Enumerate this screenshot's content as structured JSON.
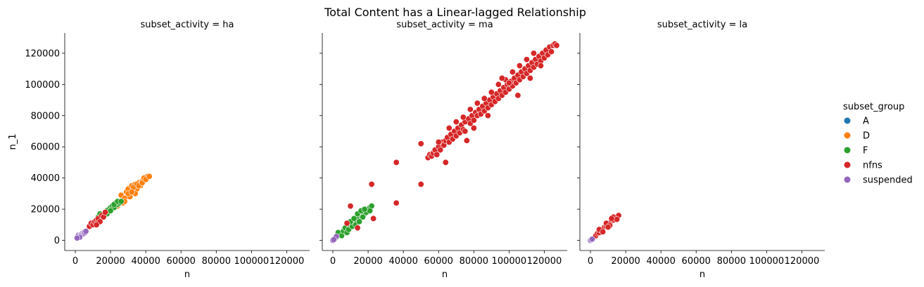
{
  "figure": {
    "title": "Total Content has a Linear-lagged Relationship"
  },
  "chart_data": [
    {
      "type": "scatter",
      "title": "subset_activity = ha",
      "xlabel": "n",
      "ylabel": "n_1",
      "xlim": [
        -6000,
        133000
      ],
      "ylim": [
        -6500,
        133000
      ],
      "xticks": [
        0,
        20000,
        40000,
        60000,
        80000,
        100000,
        120000
      ],
      "yticks": [
        0,
        20000,
        40000,
        60000,
        80000,
        100000,
        120000
      ],
      "series": [
        {
          "name": "D",
          "color": "#ff7f0e",
          "points": [
            [
              24000,
              22000
            ],
            [
              26000,
              29000
            ],
            [
              27000,
              24000
            ],
            [
              28000,
              27000
            ],
            [
              29000,
              31000
            ],
            [
              30000,
              33000
            ],
            [
              31000,
              28000
            ],
            [
              32000,
              35000
            ],
            [
              33000,
              32000
            ],
            [
              34000,
              36000
            ],
            [
              35000,
              33000
            ],
            [
              36000,
              37000
            ],
            [
              37000,
              35000
            ],
            [
              38000,
              38000
            ],
            [
              39000,
              39000
            ],
            [
              40000,
              40000
            ],
            [
              41000,
              41000
            ],
            [
              30000,
              30000
            ],
            [
              33000,
              34000
            ],
            [
              35000,
              36000
            ],
            [
              36000,
              35000
            ],
            [
              38000,
              37000
            ],
            [
              39000,
              40000
            ],
            [
              40000,
              39000
            ],
            [
              42000,
              41000
            ],
            [
              34000,
              30000
            ],
            [
              32000,
              31000
            ],
            [
              28000,
              25000
            ]
          ]
        },
        {
          "name": "F",
          "color": "#2ca02c",
          "points": [
            [
              12000,
              12000
            ],
            [
              13000,
              15000
            ],
            [
              14000,
              14000
            ],
            [
              15000,
              16000
            ],
            [
              16000,
              17000
            ],
            [
              17000,
              18000
            ],
            [
              18000,
              17000
            ],
            [
              19000,
              20000
            ],
            [
              20000,
              21000
            ],
            [
              21000,
              22000
            ],
            [
              22000,
              21000
            ],
            [
              23000,
              24000
            ],
            [
              24000,
              23000
            ],
            [
              25000,
              24000
            ],
            [
              14000,
              17000
            ],
            [
              16000,
              15000
            ],
            [
              18000,
              19000
            ],
            [
              20000,
              19000
            ],
            [
              22000,
              23000
            ],
            [
              24000,
              25000
            ],
            [
              26000,
              25000
            ]
          ]
        },
        {
          "name": "nfns",
          "color": "#d62728",
          "points": [
            [
              8000,
              9000
            ],
            [
              9000,
              11000
            ],
            [
              10000,
              10000
            ],
            [
              11000,
              12000
            ],
            [
              12000,
              13000
            ],
            [
              13000,
              12000
            ],
            [
              13000,
              14000
            ],
            [
              15000,
              16000
            ],
            [
              16000,
              15000
            ],
            [
              17000,
              18000
            ],
            [
              14000,
              12000
            ],
            [
              12000,
              10000
            ]
          ]
        },
        {
          "name": "suspended",
          "color": "#9467bd",
          "points": [
            [
              1500,
              3000
            ],
            [
              2000,
              3500
            ],
            [
              3000,
              3800
            ],
            [
              3500,
              4000
            ],
            [
              4000,
              4500
            ],
            [
              4500,
              4200
            ],
            [
              5000,
              5200
            ],
            [
              5500,
              5000
            ],
            [
              6000,
              5800
            ],
            [
              2500,
              2000
            ],
            [
              1000,
              1500
            ]
          ]
        }
      ]
    },
    {
      "type": "scatter",
      "title": "subset_activity = ma",
      "xlabel": "n",
      "ylabel": "",
      "xlim": [
        -6000,
        133000
      ],
      "ylim": [
        -6500,
        133000
      ],
      "xticks": [
        0,
        20000,
        40000,
        60000,
        80000,
        100000,
        120000
      ],
      "yticks": [
        0,
        20000,
        40000,
        60000,
        80000,
        100000,
        120000
      ],
      "series": [
        {
          "name": "F",
          "color": "#2ca02c",
          "points": [
            [
              2000,
              2000
            ],
            [
              3000,
              5000
            ],
            [
              5000,
              3000
            ],
            [
              6000,
              6000
            ],
            [
              7000,
              8000
            ],
            [
              8000,
              5000
            ],
            [
              9000,
              7000
            ],
            [
              10000,
              10000
            ],
            [
              11000,
              12000
            ],
            [
              12000,
              11000
            ],
            [
              13000,
              13000
            ],
            [
              14000,
              15000
            ],
            [
              15000,
              14000
            ],
            [
              16000,
              16000
            ],
            [
              17000,
              18000
            ],
            [
              18000,
              17000
            ],
            [
              19000,
              19000
            ],
            [
              20000,
              20000
            ],
            [
              21000,
              21000
            ],
            [
              22000,
              22000
            ],
            [
              11000,
              9000
            ],
            [
              13000,
              10000
            ],
            [
              15000,
              12000
            ],
            [
              17000,
              15000
            ],
            [
              19000,
              18000
            ],
            [
              21000,
              19000
            ],
            [
              14000,
              17000
            ],
            [
              16000,
              19000
            ],
            [
              18000,
              20000
            ],
            [
              10000,
              12000
            ],
            [
              12000,
              14000
            ]
          ]
        },
        {
          "name": "nfns",
          "color": "#d62728",
          "points": [
            [
              8000,
              11000
            ],
            [
              10000,
              22000
            ],
            [
              14000,
              8000
            ],
            [
              22000,
              36000
            ],
            [
              23000,
              14000
            ],
            [
              36000,
              50000
            ],
            [
              36000,
              24000
            ],
            [
              50000,
              62000
            ],
            [
              50000,
              36000
            ],
            [
              54000,
              53000
            ],
            [
              55000,
              55000
            ],
            [
              56000,
              54000
            ],
            [
              57000,
              56000
            ],
            [
              58000,
              58000
            ],
            [
              59000,
              55000
            ],
            [
              60000,
              60000
            ],
            [
              61000,
              58000
            ],
            [
              62000,
              63000
            ],
            [
              63000,
              61000
            ],
            [
              64000,
              64000
            ],
            [
              64000,
              50000
            ],
            [
              65000,
              66000
            ],
            [
              66000,
              63000
            ],
            [
              67000,
              68000
            ],
            [
              68000,
              65000
            ],
            [
              69000,
              70000
            ],
            [
              70000,
              67000
            ],
            [
              71000,
              72000
            ],
            [
              72000,
              69000
            ],
            [
              73000,
              74000
            ],
            [
              74000,
              71000
            ],
            [
              75000,
              76000
            ],
            [
              76000,
              64000
            ],
            [
              77000,
              78000
            ],
            [
              78000,
              75000
            ],
            [
              79000,
              80000
            ],
            [
              80000,
              77000
            ],
            [
              81000,
              82000
            ],
            [
              82000,
              80000
            ],
            [
              83000,
              84000
            ],
            [
              84000,
              81000
            ],
            [
              85000,
              86000
            ],
            [
              86000,
              83000
            ],
            [
              87000,
              88000
            ],
            [
              88000,
              85000
            ],
            [
              89000,
              90000
            ],
            [
              90000,
              87000
            ],
            [
              91000,
              92000
            ],
            [
              92000,
              89000
            ],
            [
              93000,
              94000
            ],
            [
              94000,
              91000
            ],
            [
              95000,
              96000
            ],
            [
              96000,
              93000
            ],
            [
              97000,
              98000
            ],
            [
              98000,
              95000
            ],
            [
              99000,
              100000
            ],
            [
              100000,
              97000
            ],
            [
              101000,
              102000
            ],
            [
              102000,
              99000
            ],
            [
              103000,
              104000
            ],
            [
              104000,
              101000
            ],
            [
              105000,
              106000
            ],
            [
              106000,
              103000
            ],
            [
              107000,
              108000
            ],
            [
              108000,
              105000
            ],
            [
              109000,
              110000
            ],
            [
              110000,
              107000
            ],
            [
              111000,
              112000
            ],
            [
              112000,
              109000
            ],
            [
              113000,
              114000
            ],
            [
              114000,
              111000
            ],
            [
              115000,
              116000
            ],
            [
              116000,
              113000
            ],
            [
              117000,
              118000
            ],
            [
              118000,
              115000
            ],
            [
              119000,
              120000
            ],
            [
              120000,
              117000
            ],
            [
              121000,
              122000
            ],
            [
              122000,
              119000
            ],
            [
              123000,
              124000
            ],
            [
              124000,
              121000
            ],
            [
              125000,
              125000
            ],
            [
              126000,
              126000
            ],
            [
              127000,
              125000
            ],
            [
              70000,
              76000
            ],
            [
              74000,
              79000
            ],
            [
              78000,
              84000
            ],
            [
              82000,
              88000
            ],
            [
              86000,
              91000
            ],
            [
              90000,
              95000
            ],
            [
              94000,
              100000
            ],
            [
              98000,
              103000
            ],
            [
              102000,
              108000
            ],
            [
              106000,
              112000
            ],
            [
              110000,
              116000
            ],
            [
              114000,
              120000
            ],
            [
              105000,
              93000
            ],
            [
              100000,
              101000
            ],
            [
              96000,
              104000
            ],
            [
              80000,
              72000
            ],
            [
              66000,
              72000
            ],
            [
              60000,
              63000
            ],
            [
              75000,
              70000
            ],
            [
              88000,
              80000
            ],
            [
              112000,
              104000
            ],
            [
              118000,
              112000
            ]
          ]
        },
        {
          "name": "suspended",
          "color": "#9467bd",
          "points": [
            [
              0,
              0
            ],
            [
              1000,
              1000
            ],
            [
              2000,
              2500
            ],
            [
              500,
              500
            ]
          ]
        }
      ]
    },
    {
      "type": "scatter",
      "title": "subset_activity = la",
      "xlabel": "n",
      "ylabel": "",
      "xlim": [
        -6000,
        133000
      ],
      "ylim": [
        -6500,
        133000
      ],
      "xticks": [
        0,
        20000,
        40000,
        60000,
        80000,
        100000,
        120000
      ],
      "yticks": [
        0,
        20000,
        40000,
        60000,
        80000,
        100000,
        120000
      ],
      "series": [
        {
          "name": "nfns",
          "color": "#d62728",
          "points": [
            [
              3000,
              3000
            ],
            [
              4000,
              4500
            ],
            [
              5000,
              5000
            ],
            [
              6000,
              6500
            ],
            [
              7000,
              7000
            ],
            [
              8000,
              8500
            ],
            [
              9000,
              9000
            ],
            [
              10000,
              10500
            ],
            [
              11000,
              11000
            ],
            [
              12000,
              12500
            ],
            [
              13000,
              13000
            ],
            [
              14000,
              14500
            ],
            [
              15000,
              15000
            ],
            [
              16000,
              16000
            ],
            [
              5000,
              7000
            ],
            [
              7000,
              5500
            ],
            [
              9000,
              11000
            ],
            [
              11000,
              9500
            ],
            [
              13000,
              15000
            ],
            [
              15000,
              13500
            ],
            [
              12000,
              14000
            ],
            [
              10000,
              8500
            ]
          ]
        },
        {
          "name": "suspended",
          "color": "#9467bd",
          "points": [
            [
              0,
              0
            ],
            [
              500,
              500
            ],
            [
              1000,
              800
            ]
          ]
        }
      ]
    }
  ],
  "legend": {
    "title": "subset_group",
    "placement": "right",
    "items": [
      {
        "label": "A",
        "color": "#1f77b4"
      },
      {
        "label": "D",
        "color": "#ff7f0e"
      },
      {
        "label": "F",
        "color": "#2ca02c"
      },
      {
        "label": "nfns",
        "color": "#d62728"
      },
      {
        "label": "suspended",
        "color": "#9467bd"
      }
    ]
  }
}
